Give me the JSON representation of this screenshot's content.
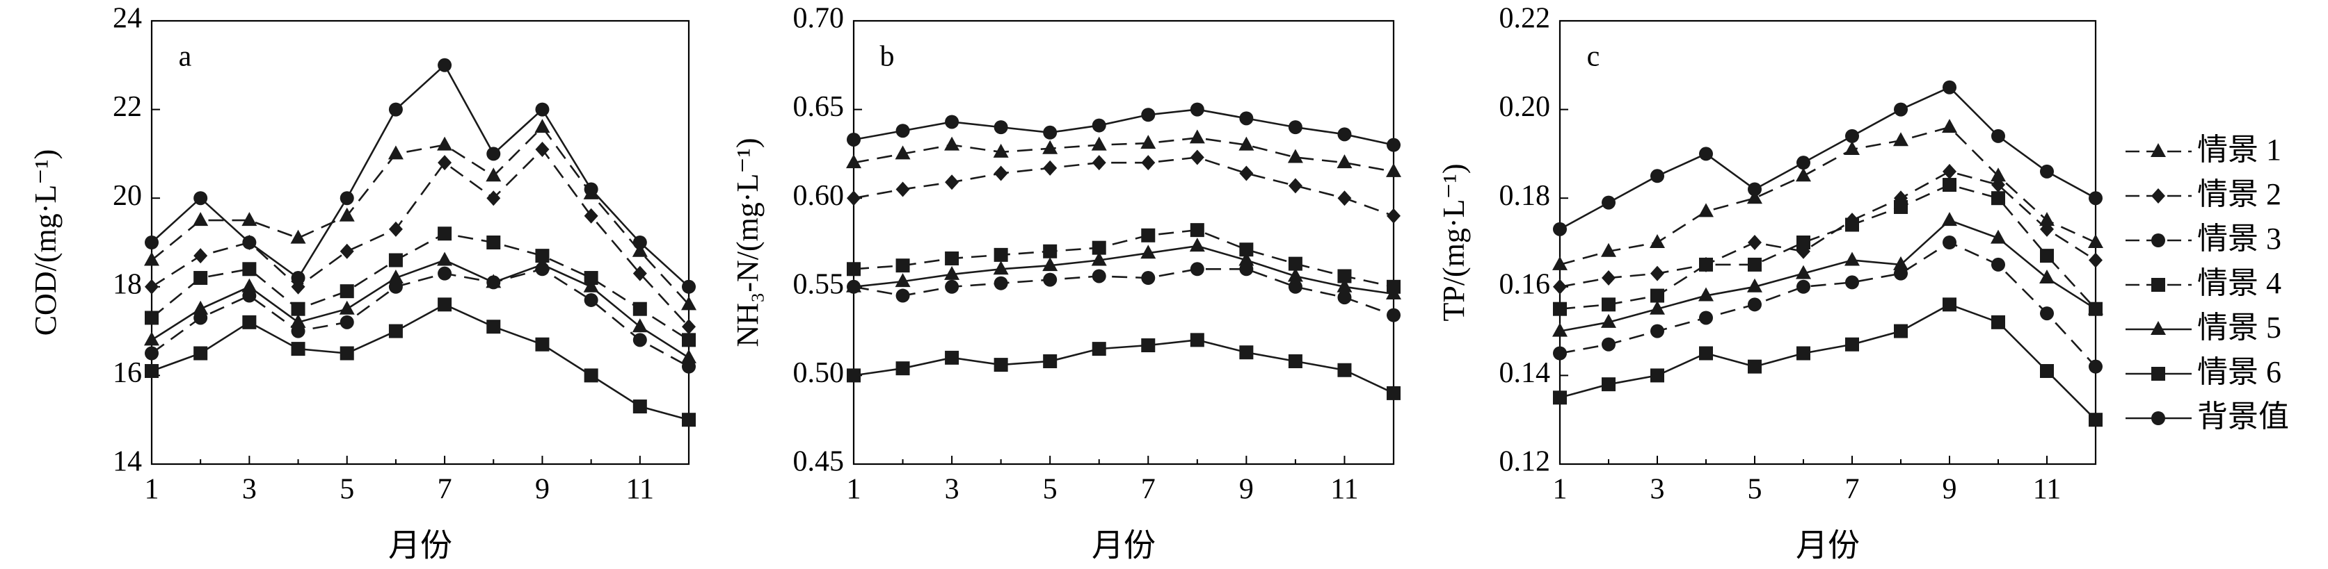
{
  "chart_data": [
    {
      "type": "line",
      "panel_label": "a",
      "xlabel": "月份",
      "ylabel": "COD/(mg·L⁻¹)",
      "xlim": [
        1,
        12
      ],
      "ylim": [
        14,
        24
      ],
      "xticks": [
        1,
        3,
        5,
        7,
        9,
        11
      ],
      "yticks": [
        14,
        16,
        18,
        20,
        22,
        24
      ],
      "ytick_labels": [
        "14",
        "16",
        "18",
        "20",
        "22",
        "24"
      ],
      "x": [
        1,
        2,
        3,
        4,
        5,
        6,
        7,
        8,
        9,
        10,
        11,
        12
      ],
      "series": [
        {
          "name": "情景 1",
          "values": [
            18.6,
            19.5,
            19.5,
            19.1,
            19.6,
            21.0,
            21.2,
            20.5,
            21.6,
            20.1,
            18.8,
            17.6
          ]
        },
        {
          "name": "情景 2",
          "values": [
            18.0,
            18.7,
            19.0,
            18.0,
            18.8,
            19.3,
            20.8,
            20.0,
            21.1,
            19.6,
            18.3,
            17.1
          ]
        },
        {
          "name": "情景 3",
          "values": [
            16.5,
            17.3,
            17.8,
            17.0,
            17.2,
            18.0,
            18.3,
            18.1,
            18.4,
            17.7,
            16.8,
            16.2
          ]
        },
        {
          "name": "情景 4",
          "values": [
            17.3,
            18.2,
            18.4,
            17.5,
            17.9,
            18.6,
            19.2,
            19.0,
            18.7,
            18.2,
            17.5,
            16.8
          ]
        },
        {
          "name": "情景 5",
          "values": [
            16.8,
            17.5,
            18.0,
            17.2,
            17.5,
            18.2,
            18.6,
            18.1,
            18.5,
            18.0,
            17.1,
            16.4
          ]
        },
        {
          "name": "情景 6",
          "values": [
            16.1,
            16.5,
            17.2,
            16.6,
            16.5,
            17.0,
            17.6,
            17.1,
            16.7,
            16.0,
            15.3,
            15.0
          ]
        },
        {
          "name": "背景值",
          "values": [
            19.0,
            20.0,
            19.0,
            18.2,
            20.0,
            22.0,
            23.0,
            21.0,
            22.0,
            20.2,
            19.0,
            18.0
          ]
        }
      ]
    },
    {
      "type": "line",
      "panel_label": "b",
      "xlabel": "月份",
      "ylabel": "NH₃-N/(mg·L⁻¹)",
      "xlim": [
        1,
        12
      ],
      "ylim": [
        0.45,
        0.7
      ],
      "xticks": [
        1,
        3,
        5,
        7,
        9,
        11
      ],
      "yticks": [
        0.45,
        0.5,
        0.55,
        0.6,
        0.65,
        0.7
      ],
      "ytick_labels": [
        "0.45",
        "0.50",
        "0.55",
        "0.60",
        "0.65",
        "0.70"
      ],
      "x": [
        1,
        2,
        3,
        4,
        5,
        6,
        7,
        8,
        9,
        10,
        11,
        12
      ],
      "series": [
        {
          "name": "情景 1",
          "values": [
            0.62,
            0.625,
            0.63,
            0.626,
            0.628,
            0.63,
            0.631,
            0.634,
            0.63,
            0.623,
            0.62,
            0.615
          ]
        },
        {
          "name": "情景 2",
          "values": [
            0.6,
            0.605,
            0.609,
            0.614,
            0.617,
            0.62,
            0.62,
            0.623,
            0.614,
            0.607,
            0.6,
            0.59
          ]
        },
        {
          "name": "情景 3",
          "values": [
            0.55,
            0.545,
            0.55,
            0.552,
            0.554,
            0.556,
            0.555,
            0.56,
            0.56,
            0.55,
            0.544,
            0.534
          ]
        },
        {
          "name": "情景 4",
          "values": [
            0.56,
            0.562,
            0.566,
            0.568,
            0.57,
            0.572,
            0.579,
            0.582,
            0.571,
            0.563,
            0.556,
            0.55
          ]
        },
        {
          "name": "情景 5",
          "values": [
            0.55,
            0.553,
            0.557,
            0.56,
            0.562,
            0.565,
            0.569,
            0.573,
            0.565,
            0.556,
            0.55,
            0.546
          ]
        },
        {
          "name": "情景 6",
          "values": [
            0.5,
            0.504,
            0.51,
            0.506,
            0.508,
            0.515,
            0.517,
            0.52,
            0.513,
            0.508,
            0.503,
            0.49
          ]
        },
        {
          "name": "背景值",
          "values": [
            0.633,
            0.638,
            0.643,
            0.64,
            0.637,
            0.641,
            0.647,
            0.65,
            0.645,
            0.64,
            0.636,
            0.63
          ]
        }
      ]
    },
    {
      "type": "line",
      "panel_label": "c",
      "xlabel": "月份",
      "ylabel": "TP/(mg·L⁻¹)",
      "xlim": [
        1,
        12
      ],
      "ylim": [
        0.12,
        0.22
      ],
      "xticks": [
        1,
        3,
        5,
        7,
        9,
        11
      ],
      "yticks": [
        0.12,
        0.14,
        0.16,
        0.18,
        0.2,
        0.22
      ],
      "ytick_labels": [
        "0.12",
        "0.14",
        "0.16",
        "0.18",
        "0.20",
        "0.22"
      ],
      "x": [
        1,
        2,
        3,
        4,
        5,
        6,
        7,
        8,
        9,
        10,
        11,
        12
      ],
      "series": [
        {
          "name": "情景 1",
          "values": [
            0.165,
            0.168,
            0.17,
            0.177,
            0.18,
            0.185,
            0.191,
            0.193,
            0.196,
            0.185,
            0.175,
            0.17
          ]
        },
        {
          "name": "情景 2",
          "values": [
            0.16,
            0.162,
            0.163,
            0.165,
            0.17,
            0.168,
            0.175,
            0.18,
            0.186,
            0.183,
            0.173,
            0.166
          ]
        },
        {
          "name": "情景 3",
          "values": [
            0.145,
            0.147,
            0.15,
            0.153,
            0.156,
            0.16,
            0.161,
            0.163,
            0.17,
            0.165,
            0.154,
            0.142
          ]
        },
        {
          "name": "情景 4",
          "values": [
            0.155,
            0.156,
            0.158,
            0.165,
            0.165,
            0.17,
            0.174,
            0.178,
            0.183,
            0.18,
            0.167,
            0.155
          ]
        },
        {
          "name": "情景 5",
          "values": [
            0.15,
            0.152,
            0.155,
            0.158,
            0.16,
            0.163,
            0.166,
            0.165,
            0.175,
            0.171,
            0.162,
            0.155
          ]
        },
        {
          "name": "情景 6",
          "values": [
            0.135,
            0.138,
            0.14,
            0.145,
            0.142,
            0.145,
            0.147,
            0.15,
            0.156,
            0.152,
            0.141,
            0.13
          ]
        },
        {
          "name": "背景值",
          "values": [
            0.173,
            0.179,
            0.185,
            0.19,
            0.182,
            0.188,
            0.194,
            0.2,
            0.205,
            0.194,
            0.186,
            0.18
          ]
        }
      ]
    }
  ],
  "legend": {
    "placement": "right",
    "items": [
      {
        "label": "情景 1",
        "marker": "triangle",
        "dash": "dashed"
      },
      {
        "label": "情景 2",
        "marker": "diamond",
        "dash": "dashed"
      },
      {
        "label": "情景 3",
        "marker": "circle",
        "dash": "dashed"
      },
      {
        "label": "情景 4",
        "marker": "square",
        "dash": "dashed"
      },
      {
        "label": "情景 5",
        "marker": "triangle",
        "dash": "solid"
      },
      {
        "label": "情景 6",
        "marker": "square",
        "dash": "solid"
      },
      {
        "label": "背景值",
        "marker": "circle",
        "dash": "solid"
      }
    ]
  },
  "colors": {
    "line": "#1a1a1a",
    "axis": "#000000",
    "background": "#ffffff"
  }
}
